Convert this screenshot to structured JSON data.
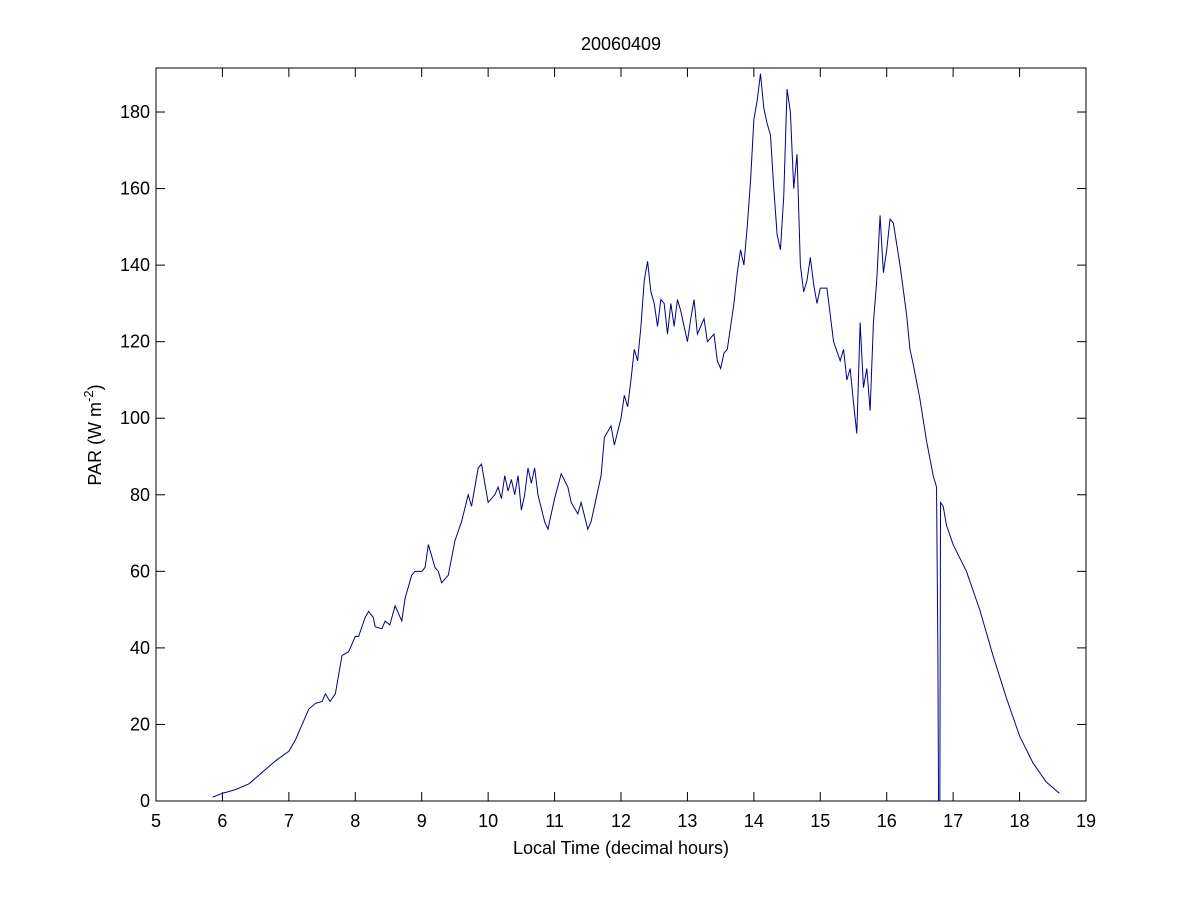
{
  "chart_data": {
    "type": "line",
    "title": "20060409",
    "xlabel": "Local Time (decimal hours)",
    "ylabel": [
      "PAR (W m",
      "-2",
      ")"
    ],
    "color": "#00008b",
    "xlim": [
      5,
      19
    ],
    "ylim": [
      0,
      191.5
    ],
    "xticks": [
      5,
      6,
      7,
      8,
      9,
      10,
      11,
      12,
      13,
      14,
      15,
      16,
      17,
      18,
      19
    ],
    "yticks": [
      0,
      20,
      40,
      60,
      80,
      100,
      120,
      140,
      160,
      180
    ],
    "x": [
      5.85,
      6.0,
      6.2,
      6.4,
      6.6,
      6.8,
      7.0,
      7.1,
      7.2,
      7.3,
      7.4,
      7.5,
      7.55,
      7.62,
      7.7,
      7.8,
      7.9,
      8.0,
      8.05,
      8.15,
      8.2,
      8.27,
      8.3,
      8.4,
      8.45,
      8.52,
      8.6,
      8.7,
      8.75,
      8.85,
      8.9,
      9.0,
      9.05,
      9.1,
      9.2,
      9.25,
      9.3,
      9.4,
      9.5,
      9.6,
      9.7,
      9.75,
      9.8,
      9.85,
      9.9,
      9.95,
      10.0,
      10.1,
      10.15,
      10.2,
      10.25,
      10.3,
      10.35,
      10.4,
      10.45,
      10.5,
      10.55,
      10.6,
      10.65,
      10.7,
      10.75,
      10.85,
      10.9,
      11.0,
      11.1,
      11.2,
      11.25,
      11.35,
      11.4,
      11.5,
      11.55,
      11.7,
      11.75,
      11.85,
      11.9,
      12.0,
      12.05,
      12.1,
      12.15,
      12.2,
      12.25,
      12.3,
      12.35,
      12.4,
      12.45,
      12.5,
      12.55,
      12.6,
      12.65,
      12.7,
      12.75,
      12.8,
      12.85,
      12.9,
      12.95,
      13.0,
      13.05,
      13.1,
      13.15,
      13.2,
      13.25,
      13.3,
      13.4,
      13.45,
      13.5,
      13.55,
      13.6,
      13.7,
      13.75,
      13.8,
      13.85,
      13.9,
      13.95,
      14.0,
      14.05,
      14.1,
      14.15,
      14.2,
      14.25,
      14.3,
      14.35,
      14.4,
      14.45,
      14.5,
      14.55,
      14.6,
      14.65,
      14.7,
      14.75,
      14.8,
      14.85,
      14.9,
      14.95,
      15.0,
      15.1,
      15.2,
      15.3,
      15.35,
      15.4,
      15.45,
      15.5,
      15.55,
      15.6,
      15.65,
      15.7,
      15.75,
      15.8,
      15.85,
      15.9,
      15.95,
      16.0,
      16.05,
      16.1,
      16.2,
      16.3,
      16.35,
      16.4,
      16.5,
      16.6,
      16.7,
      16.75,
      16.77,
      16.78,
      16.8,
      16.81,
      16.85,
      16.9,
      17.0,
      17.2,
      17.4,
      17.6,
      17.8,
      18.0,
      18.2,
      18.4,
      18.6
    ],
    "values": [
      1,
      2,
      3,
      4.5,
      7.5,
      10.5,
      13,
      16,
      20,
      24,
      25.5,
      26,
      28,
      26,
      28,
      38,
      39,
      43,
      43,
      48,
      49.5,
      48,
      45.5,
      45,
      47,
      46,
      51,
      47,
      53,
      59,
      60,
      60,
      61,
      67,
      61,
      60,
      57,
      59,
      68,
      73,
      80,
      77,
      82,
      87,
      88,
      83,
      78,
      80,
      82,
      79,
      85,
      81,
      84,
      80,
      85,
      76,
      80,
      87,
      83,
      87,
      80,
      73,
      71,
      79,
      85.5,
      82,
      78,
      75,
      78,
      71,
      73,
      85,
      95,
      98,
      93,
      100,
      106,
      103,
      110,
      118,
      115,
      124,
      136,
      141,
      133,
      130,
      124,
      131,
      130,
      122,
      130,
      124,
      131,
      128,
      124,
      120,
      126,
      131,
      122,
      124,
      126,
      120,
      122,
      115,
      113,
      117,
      118,
      130,
      138,
      144,
      140,
      150,
      162,
      178,
      183,
      190,
      181,
      177,
      174,
      160,
      148,
      144,
      158,
      186,
      180,
      160,
      169,
      140,
      133,
      136,
      142,
      135,
      130,
      134,
      134,
      120,
      115,
      118,
      110,
      113,
      104,
      96,
      125,
      108,
      113,
      102,
      125,
      136,
      153,
      138,
      144,
      152,
      151,
      140,
      127,
      118,
      114,
      105,
      94,
      85,
      82,
      40,
      0,
      0,
      78,
      77,
      72,
      67,
      60,
      50,
      38,
      27,
      17,
      10,
      5,
      2
    ]
  }
}
